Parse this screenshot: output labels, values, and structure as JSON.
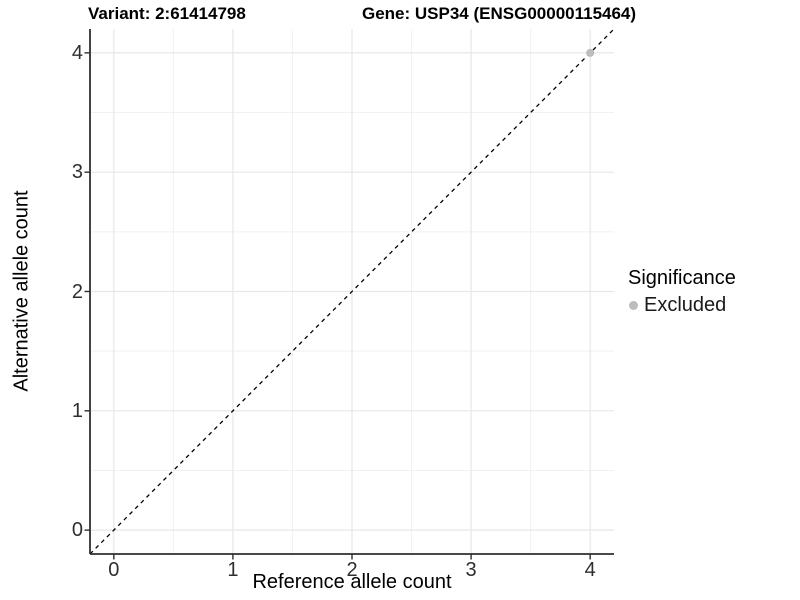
{
  "header": {
    "variant_title": "Variant: 2:61414798",
    "gene_title": "Gene: USP34 (ENSG00000115464)"
  },
  "axes": {
    "x": {
      "label": "Reference allele count",
      "ticks": [
        "0",
        "1",
        "2",
        "3",
        "4"
      ]
    },
    "y": {
      "label": "Alternative allele count",
      "ticks": [
        "0",
        "1",
        "2",
        "3",
        "4"
      ]
    }
  },
  "legend": {
    "title": "Significance",
    "position": "right",
    "items": [
      {
        "label": "Excluded",
        "color": "#bdbdbd"
      }
    ]
  },
  "chart_data": {
    "type": "scatter",
    "title": "Variant: 2:61414798 | Gene: USP34 (ENSG00000115464)",
    "xlabel": "Reference allele count",
    "ylabel": "Alternative allele count",
    "xlim": [
      -0.2,
      4.2
    ],
    "ylim": [
      -0.2,
      4.2
    ],
    "grid": {
      "major": [
        0,
        1,
        2,
        3,
        4
      ],
      "minor": [
        0.5,
        1.5,
        2.5,
        3.5
      ]
    },
    "series": [
      {
        "name": "Excluded",
        "color": "#bdbdbd",
        "marker_radius": 4,
        "points": [
          {
            "x": 4,
            "y": 4
          }
        ]
      }
    ],
    "reference_line": {
      "kind": "identity",
      "equation": "y = x",
      "style": "dashed",
      "color": "#000000"
    },
    "legend_position": "right"
  },
  "colors": {
    "background": "#ffffff",
    "grid_major": "#e7e7e7",
    "grid_minor": "#f1f1f1",
    "axis_line": "#2f2f2f",
    "tick_mark": "#2f2f2f",
    "point": "#bdbdbd",
    "dashed_line": "#000000"
  }
}
